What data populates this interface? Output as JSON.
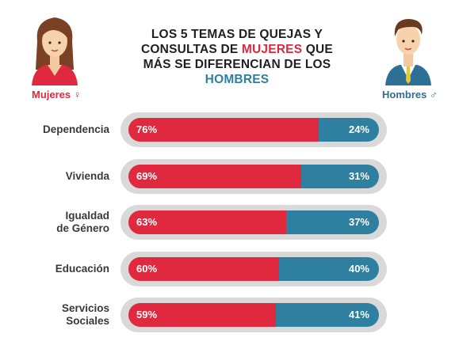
{
  "title": {
    "line1": "LOS 5 TEMAS DE QUEJAS Y",
    "line2_pre": "CONSULTAS DE ",
    "line2_highlight": "MUJERES",
    "line2_post": " QUE",
    "line3": "MÁS SE DIFERENCIAN DE LOS",
    "line4": "HOMBRES"
  },
  "legend": {
    "women": "Mujeres",
    "women_symbol": "♀",
    "men": "Hombres",
    "men_symbol": "♂"
  },
  "colors": {
    "women": "#e0283e",
    "men": "#2f7fa0",
    "track": "#d9d9d9"
  },
  "chart_data": {
    "type": "bar",
    "stacked": true,
    "orientation": "horizontal",
    "categories": [
      "Dependencia",
      "Vivienda",
      "Igualdad de Género",
      "Educación",
      "Servicios Sociales"
    ],
    "category_lines": [
      [
        "Dependencia"
      ],
      [
        "Vivienda"
      ],
      [
        "Igualdad",
        "de Género"
      ],
      [
        "Educación"
      ],
      [
        "Servicios",
        "Sociales"
      ]
    ],
    "series": [
      {
        "name": "Mujeres",
        "values": [
          76,
          69,
          63,
          60,
          59
        ],
        "labels": [
          "76%",
          "69%",
          "63%",
          "60%",
          "59%"
        ]
      },
      {
        "name": "Hombres",
        "values": [
          24,
          31,
          37,
          40,
          41
        ],
        "labels": [
          "24%",
          "31%",
          "37%",
          "40%",
          "41%"
        ]
      }
    ],
    "xlim": [
      0,
      100
    ]
  }
}
